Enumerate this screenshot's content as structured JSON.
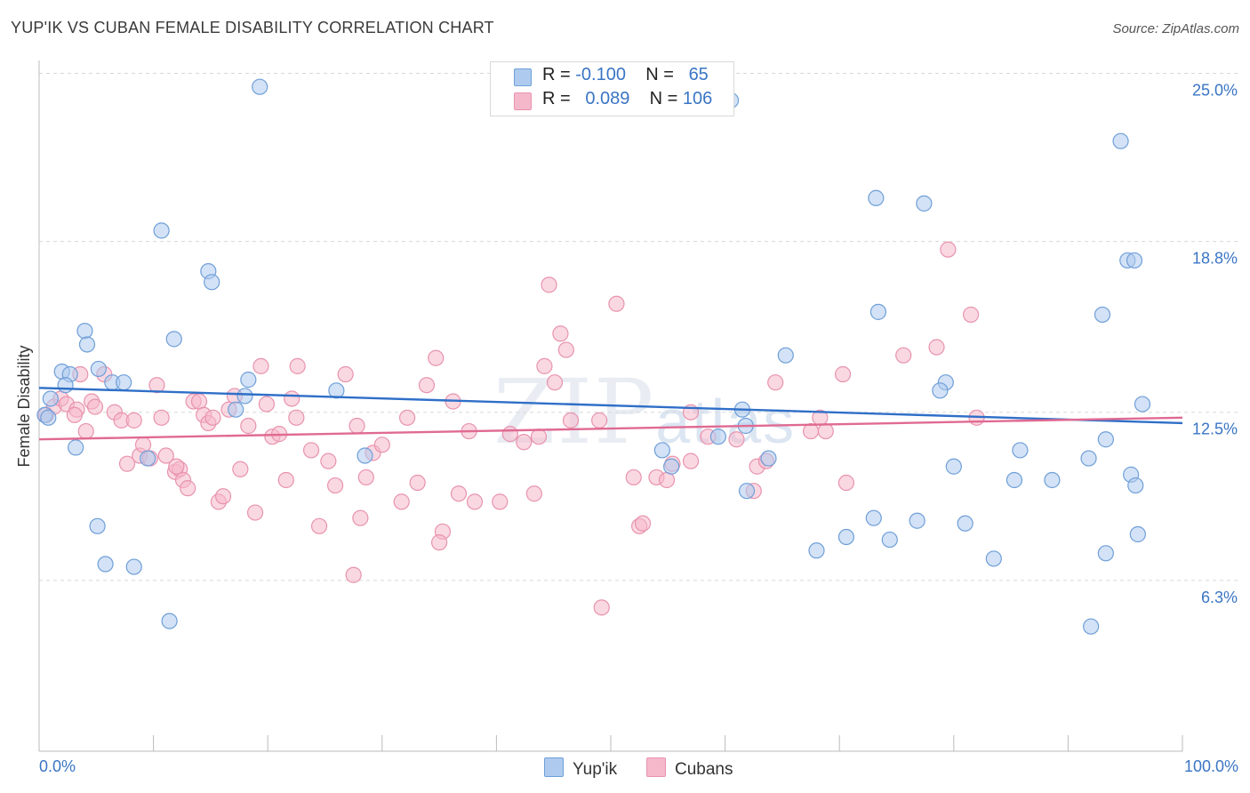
{
  "title": "YUP'IK VS CUBAN FEMALE DISABILITY CORRELATION CHART",
  "source": "Source: ZipAtlas.com",
  "watermark": {
    "main": "ZIP",
    "sub": "atlas"
  },
  "colors": {
    "blue_fill": "#aecbef",
    "blue_stroke": "#6f9fd8",
    "blue_line": "#2f6fc8",
    "pink_fill": "#f5b8cb",
    "pink_stroke": "#e893ae",
    "pink_line": "#e06a92",
    "axis_label": "#3a75c4",
    "grid": "#d8d8d8"
  },
  "stats": [
    {
      "r_label": "R =",
      "r_value": "-0.100",
      "n_label": "N =",
      "n_value": "65"
    },
    {
      "r_label": "R =",
      "r_value": "0.089",
      "n_label": "N =",
      "n_value": "106"
    }
  ],
  "legend": [
    {
      "label": "Yup'ik"
    },
    {
      "label": "Cubans"
    }
  ],
  "chart_data": {
    "type": "scatter",
    "ylabel": "Female Disability",
    "xlim": [
      0,
      100
    ],
    "ylim": [
      0,
      25.9
    ],
    "x_tick_labels": [
      "0.0%",
      "100.0%"
    ],
    "y_ticks": [
      6.3,
      12.5,
      18.8,
      25.0
    ],
    "y_tick_labels": [
      "6.3%",
      "12.5%",
      "18.8%",
      "25.0%"
    ],
    "grid": true,
    "series": [
      {
        "name": "Yup'ik",
        "trend": {
          "x": [
            0,
            100
          ],
          "y": [
            13.4,
            12.1
          ]
        },
        "points": [
          {
            "x": 19.3,
            "y": 24.5
          },
          {
            "x": 10.7,
            "y": 19.2
          },
          {
            "x": 14.8,
            "y": 17.7
          },
          {
            "x": 15.1,
            "y": 17.3
          },
          {
            "x": 4.0,
            "y": 15.5
          },
          {
            "x": 4.2,
            "y": 15.0
          },
          {
            "x": 11.8,
            "y": 15.2
          },
          {
            "x": 2.0,
            "y": 14.0
          },
          {
            "x": 2.7,
            "y": 13.9
          },
          {
            "x": 5.2,
            "y": 14.1
          },
          {
            "x": 6.4,
            "y": 13.6
          },
          {
            "x": 7.4,
            "y": 13.6
          },
          {
            "x": 2.3,
            "y": 13.5
          },
          {
            "x": 18.3,
            "y": 13.7
          },
          {
            "x": 1.0,
            "y": 13.0
          },
          {
            "x": 0.5,
            "y": 12.4
          },
          {
            "x": 0.8,
            "y": 12.3
          },
          {
            "x": 3.2,
            "y": 11.2
          },
          {
            "x": 17.2,
            "y": 12.6
          },
          {
            "x": 18.0,
            "y": 13.1
          },
          {
            "x": 26.0,
            "y": 13.3
          },
          {
            "x": 9.5,
            "y": 10.8
          },
          {
            "x": 28.5,
            "y": 10.9
          },
          {
            "x": 5.1,
            "y": 8.3
          },
          {
            "x": 5.8,
            "y": 6.9
          },
          {
            "x": 8.3,
            "y": 6.8
          },
          {
            "x": 11.4,
            "y": 4.8
          },
          {
            "x": 94.6,
            "y": 22.5
          },
          {
            "x": 73.2,
            "y": 20.4
          },
          {
            "x": 77.4,
            "y": 20.2
          },
          {
            "x": 95.2,
            "y": 18.1
          },
          {
            "x": 95.8,
            "y": 18.1
          },
          {
            "x": 73.4,
            "y": 16.2
          },
          {
            "x": 93.0,
            "y": 16.1
          },
          {
            "x": 65.3,
            "y": 14.6
          },
          {
            "x": 79.3,
            "y": 13.6
          },
          {
            "x": 78.8,
            "y": 13.3
          },
          {
            "x": 96.5,
            "y": 12.8
          },
          {
            "x": 61.5,
            "y": 12.6
          },
          {
            "x": 61.8,
            "y": 12.0
          },
          {
            "x": 59.4,
            "y": 11.6
          },
          {
            "x": 54.5,
            "y": 11.1
          },
          {
            "x": 63.8,
            "y": 10.8
          },
          {
            "x": 85.8,
            "y": 11.1
          },
          {
            "x": 93.3,
            "y": 11.5
          },
          {
            "x": 91.8,
            "y": 10.8
          },
          {
            "x": 80.0,
            "y": 10.5
          },
          {
            "x": 95.5,
            "y": 10.2
          },
          {
            "x": 95.9,
            "y": 9.8
          },
          {
            "x": 85.3,
            "y": 10.0
          },
          {
            "x": 88.6,
            "y": 10.0
          },
          {
            "x": 61.9,
            "y": 9.6
          },
          {
            "x": 73.0,
            "y": 8.6
          },
          {
            "x": 76.8,
            "y": 8.5
          },
          {
            "x": 81.0,
            "y": 8.4
          },
          {
            "x": 70.6,
            "y": 7.9
          },
          {
            "x": 74.4,
            "y": 7.8
          },
          {
            "x": 68.0,
            "y": 7.4
          },
          {
            "x": 96.1,
            "y": 8.0
          },
          {
            "x": 83.5,
            "y": 7.1
          },
          {
            "x": 93.3,
            "y": 7.3
          },
          {
            "x": 92.0,
            "y": 4.6
          },
          {
            "x": 42.2,
            "y": 25.1
          },
          {
            "x": 60.5,
            "y": 24.0
          },
          {
            "x": 55.3,
            "y": 10.5
          }
        ]
      },
      {
        "name": "Cubans",
        "trend": {
          "x": [
            0,
            100
          ],
          "y": [
            11.5,
            12.3
          ]
        },
        "points": [
          {
            "x": 0.6,
            "y": 12.4
          },
          {
            "x": 1.3,
            "y": 12.7
          },
          {
            "x": 1.9,
            "y": 13.0
          },
          {
            "x": 2.4,
            "y": 12.8
          },
          {
            "x": 3.3,
            "y": 12.6
          },
          {
            "x": 3.6,
            "y": 13.9
          },
          {
            "x": 4.1,
            "y": 11.8
          },
          {
            "x": 4.6,
            "y": 12.9
          },
          {
            "x": 4.9,
            "y": 12.7
          },
          {
            "x": 5.7,
            "y": 13.9
          },
          {
            "x": 6.6,
            "y": 12.5
          },
          {
            "x": 7.2,
            "y": 12.2
          },
          {
            "x": 7.7,
            "y": 10.6
          },
          {
            "x": 8.3,
            "y": 12.2
          },
          {
            "x": 8.8,
            "y": 10.9
          },
          {
            "x": 9.1,
            "y": 11.3
          },
          {
            "x": 9.7,
            "y": 10.8
          },
          {
            "x": 10.3,
            "y": 13.5
          },
          {
            "x": 10.7,
            "y": 12.3
          },
          {
            "x": 11.1,
            "y": 10.9
          },
          {
            "x": 11.9,
            "y": 10.3
          },
          {
            "x": 12.3,
            "y": 10.4
          },
          {
            "x": 12.6,
            "y": 10.0
          },
          {
            "x": 13.0,
            "y": 9.7
          },
          {
            "x": 13.5,
            "y": 12.9
          },
          {
            "x": 14.0,
            "y": 12.9
          },
          {
            "x": 14.4,
            "y": 12.4
          },
          {
            "x": 14.8,
            "y": 12.1
          },
          {
            "x": 15.2,
            "y": 12.3
          },
          {
            "x": 15.7,
            "y": 9.2
          },
          {
            "x": 16.1,
            "y": 9.4
          },
          {
            "x": 16.6,
            "y": 12.6
          },
          {
            "x": 17.1,
            "y": 13.1
          },
          {
            "x": 17.6,
            "y": 10.4
          },
          {
            "x": 18.3,
            "y": 12.0
          },
          {
            "x": 18.9,
            "y": 8.8
          },
          {
            "x": 19.4,
            "y": 14.2
          },
          {
            "x": 19.9,
            "y": 12.8
          },
          {
            "x": 20.4,
            "y": 11.6
          },
          {
            "x": 21.0,
            "y": 11.7
          },
          {
            "x": 21.6,
            "y": 10.0
          },
          {
            "x": 22.1,
            "y": 13.0
          },
          {
            "x": 22.6,
            "y": 14.2
          },
          {
            "x": 23.8,
            "y": 11.1
          },
          {
            "x": 24.5,
            "y": 8.3
          },
          {
            "x": 25.3,
            "y": 10.7
          },
          {
            "x": 25.9,
            "y": 9.8
          },
          {
            "x": 26.8,
            "y": 13.9
          },
          {
            "x": 27.5,
            "y": 6.5
          },
          {
            "x": 27.8,
            "y": 12.0
          },
          {
            "x": 28.1,
            "y": 8.6
          },
          {
            "x": 28.6,
            "y": 10.1
          },
          {
            "x": 29.2,
            "y": 11.0
          },
          {
            "x": 30.0,
            "y": 11.3
          },
          {
            "x": 31.7,
            "y": 9.2
          },
          {
            "x": 32.2,
            "y": 12.3
          },
          {
            "x": 33.1,
            "y": 9.9
          },
          {
            "x": 33.9,
            "y": 13.5
          },
          {
            "x": 34.7,
            "y": 14.5
          },
          {
            "x": 35.3,
            "y": 8.1
          },
          {
            "x": 35.0,
            "y": 7.7
          },
          {
            "x": 36.2,
            "y": 12.9
          },
          {
            "x": 36.7,
            "y": 9.5
          },
          {
            "x": 37.6,
            "y": 11.8
          },
          {
            "x": 38.1,
            "y": 9.2
          },
          {
            "x": 40.3,
            "y": 9.2
          },
          {
            "x": 41.2,
            "y": 11.7
          },
          {
            "x": 42.4,
            "y": 11.4
          },
          {
            "x": 43.3,
            "y": 9.5
          },
          {
            "x": 43.7,
            "y": 11.6
          },
          {
            "x": 44.2,
            "y": 14.2
          },
          {
            "x": 44.6,
            "y": 17.2
          },
          {
            "x": 45.1,
            "y": 13.6
          },
          {
            "x": 45.6,
            "y": 15.4
          },
          {
            "x": 46.1,
            "y": 14.8
          },
          {
            "x": 46.5,
            "y": 12.2
          },
          {
            "x": 49.0,
            "y": 12.2
          },
          {
            "x": 49.2,
            "y": 5.3
          },
          {
            "x": 50.5,
            "y": 16.5
          },
          {
            "x": 52.0,
            "y": 10.1
          },
          {
            "x": 52.5,
            "y": 8.3
          },
          {
            "x": 52.8,
            "y": 8.4
          },
          {
            "x": 54.0,
            "y": 10.1
          },
          {
            "x": 54.9,
            "y": 10.0
          },
          {
            "x": 55.4,
            "y": 10.6
          },
          {
            "x": 57.0,
            "y": 10.7
          },
          {
            "x": 58.5,
            "y": 11.6
          },
          {
            "x": 61.0,
            "y": 11.5
          },
          {
            "x": 62.5,
            "y": 9.6
          },
          {
            "x": 62.8,
            "y": 10.5
          },
          {
            "x": 63.6,
            "y": 10.7
          },
          {
            "x": 64.4,
            "y": 13.6
          },
          {
            "x": 67.5,
            "y": 11.8
          },
          {
            "x": 68.3,
            "y": 12.3
          },
          {
            "x": 68.8,
            "y": 11.8
          },
          {
            "x": 70.3,
            "y": 13.9
          },
          {
            "x": 70.6,
            "y": 9.9
          },
          {
            "x": 75.6,
            "y": 14.6
          },
          {
            "x": 78.5,
            "y": 14.9
          },
          {
            "x": 79.5,
            "y": 18.5
          },
          {
            "x": 81.5,
            "y": 16.1
          },
          {
            "x": 82.0,
            "y": 12.3
          },
          {
            "x": 57.0,
            "y": 12.5
          },
          {
            "x": 12.0,
            "y": 10.5
          },
          {
            "x": 3.1,
            "y": 12.4
          },
          {
            "x": 22.5,
            "y": 12.3
          }
        ]
      }
    ]
  }
}
